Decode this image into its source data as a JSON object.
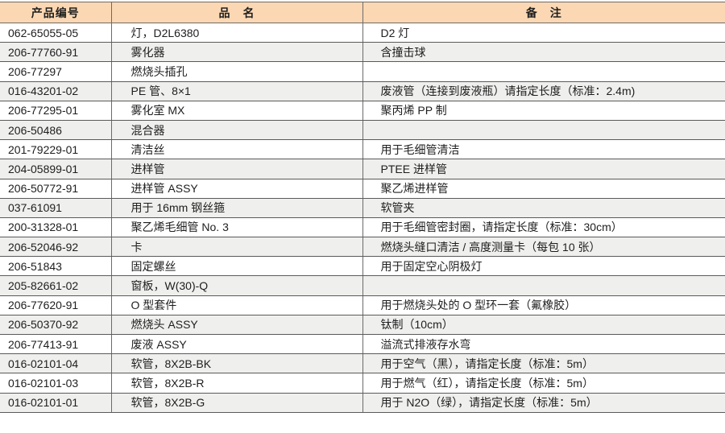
{
  "header": {
    "code": "产品编号",
    "name": "品　名",
    "note": "备　注"
  },
  "rows": [
    {
      "code": "062-65055-05",
      "name": "灯，D2L6380",
      "note": "D2 灯"
    },
    {
      "code": "206-77760-91",
      "name": "雾化器",
      "note": "含撞击球"
    },
    {
      "code": "206-77297",
      "name": "燃烧头插孔",
      "note": ""
    },
    {
      "code": "016-43201-02",
      "name": "PE 管、8×1",
      "note": "废液管（连接到废液瓶）请指定长度（标准：2.4m)"
    },
    {
      "code": "206-77295-01",
      "name": "雾化室 MX",
      "note": "聚丙烯 PP 制"
    },
    {
      "code": "206-50486",
      "name": "混合器",
      "note": ""
    },
    {
      "code": "201-79229-01",
      "name": "清洁丝",
      "note": "用于毛细管清洁"
    },
    {
      "code": "204-05899-01",
      "name": "进样管",
      "note": "PTEE 进样管"
    },
    {
      "code": "206-50772-91",
      "name": "进样管 ASSY",
      "note": "聚乙烯进样管"
    },
    {
      "code": "037-61091",
      "name": "用于 16mm 钢丝箍",
      "note": "软管夹"
    },
    {
      "code": "200-31328-01",
      "name": "聚乙烯毛细管 No. 3",
      "note": "用于毛细管密封圈，请指定长度（标准：30cm）"
    },
    {
      "code": "206-52046-92",
      "name": "卡",
      "note": "燃烧头缝口清洁 / 高度测量卡（每包 10 张）"
    },
    {
      "code": "206-51843",
      "name": "固定螺丝",
      "note": "用于固定空心阴极灯"
    },
    {
      "code": "205-82661-02",
      "name": "窗板，W(30)-Q",
      "note": ""
    },
    {
      "code": "206-77620-91",
      "name": "O 型套件",
      "note": "用于燃烧头处的 O 型环一套（氟橡胶）"
    },
    {
      "code": "206-50370-92",
      "name": "燃烧头 ASSY",
      "note": "钛制（10cm）"
    },
    {
      "code": "206-77413-91",
      "name": "废液 ASSY",
      "note": "溢流式排液存水弯"
    },
    {
      "code": "016-02101-04",
      "name": "软管，8X2B-BK",
      "note": "用于空气（黑），请指定长度（标准：5m）"
    },
    {
      "code": "016-02101-03",
      "name": "软管，8X2B-R",
      "note": "用于燃气（红），请指定长度（标准：5m）"
    },
    {
      "code": "016-02101-01",
      "name": "软管，8X2B-G",
      "note": "用于 N2O（绿），请指定长度（标准：5m）"
    }
  ],
  "colors": {
    "header_bg": "#fbd8b3",
    "alt_row_bg": "#efefed",
    "border": "#5a5a5a"
  }
}
